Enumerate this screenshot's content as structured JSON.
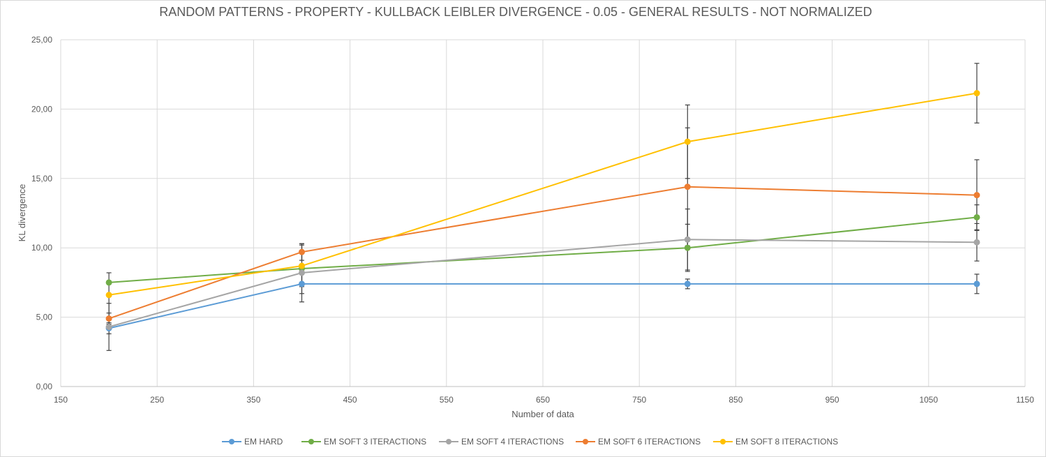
{
  "chart_data": {
    "type": "scatter",
    "title": "RANDOM PATTERNS - PROPERTY - KULLBACK LEIBLER DIVERGENCE - 0.05 - GENERAL RESULTS - NOT NORMALIZED",
    "xlabel": "Number of data",
    "ylabel": "KL divergence",
    "xlim": [
      150,
      1150
    ],
    "ylim": [
      0,
      25
    ],
    "x_ticks": [
      "150",
      "250",
      "350",
      "450",
      "550",
      "650",
      "750",
      "850",
      "950",
      "1050",
      "1150"
    ],
    "y_ticks": [
      "0,00",
      "5,00",
      "10,00",
      "15,00",
      "20,00",
      "25,00"
    ],
    "grid": true,
    "legend_position": "bottom",
    "x": [
      200,
      400,
      800,
      1100
    ],
    "series": [
      {
        "name": "EM HARD",
        "color": "#5b9bd5",
        "values": [
          4.2,
          7.4,
          7.4,
          7.4
        ],
        "error": [
          0.4,
          0.7,
          0.35,
          0.7
        ]
      },
      {
        "name": "EM SOFT 3 ITERACTIONS",
        "color": "#70ad47",
        "values": [
          7.5,
          8.5,
          10.0,
          12.2
        ],
        "error": [
          0.0,
          0.0,
          1.7,
          0.9
        ]
      },
      {
        "name": "EM SOFT 4 ITERACTIONS",
        "color": "#a5a5a5",
        "values": [
          4.3,
          8.2,
          10.6,
          10.4
        ],
        "error": [
          1.7,
          2.1,
          2.2,
          1.35
        ]
      },
      {
        "name": "EM SOFT 6 ITERACTIONS",
        "color": "#ed7d31",
        "values": [
          4.9,
          9.7,
          14.4,
          13.8
        ],
        "error": [
          0.4,
          0.6,
          4.25,
          2.55
        ]
      },
      {
        "name": "EM SOFT 8 ITERACTIONS",
        "color": "#ffc000",
        "values": [
          6.6,
          8.7,
          17.65,
          21.15
        ],
        "error": [
          1.6,
          1.5,
          2.65,
          2.15
        ]
      }
    ]
  }
}
